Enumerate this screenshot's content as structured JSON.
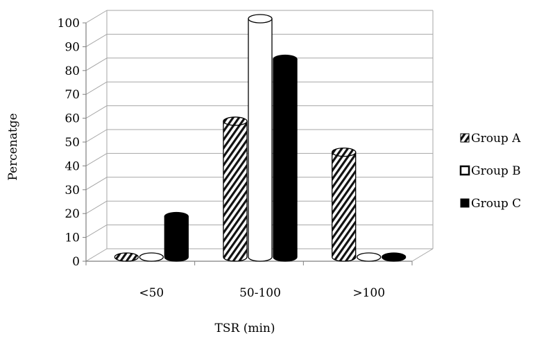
{
  "chart_data": {
    "type": "bar",
    "title": "",
    "xlabel": "TSR (min)",
    "ylabel": "Percenatge",
    "ylim": [
      0,
      100
    ],
    "yticks": [
      0,
      10,
      20,
      30,
      40,
      50,
      60,
      70,
      80,
      90,
      100
    ],
    "grid": true,
    "style": "3d-cylinder",
    "legend_position": "right",
    "categories": [
      "<50",
      "50-100",
      ">100"
    ],
    "series": [
      {
        "name": "Group A",
        "values": [
          0,
          57,
          44
        ],
        "fill": "hatched"
      },
      {
        "name": "Group B",
        "values": [
          0,
          100,
          0
        ],
        "fill": "white"
      },
      {
        "name": "Group C",
        "values": [
          17,
          83,
          0
        ],
        "fill": "black"
      }
    ]
  }
}
